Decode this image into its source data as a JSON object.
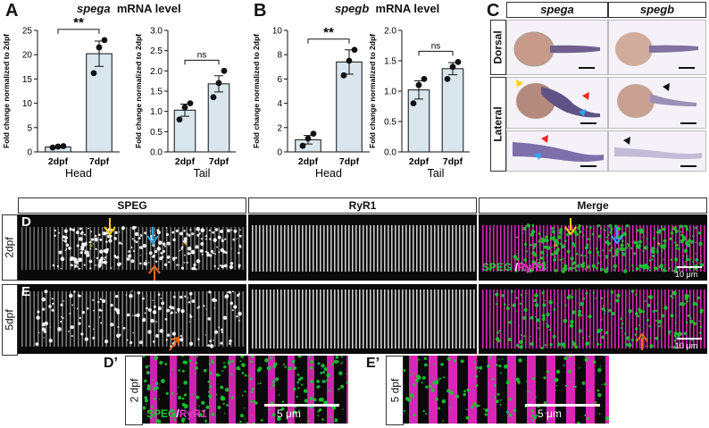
{
  "panels": {
    "A": {
      "label": "A",
      "gene": "spega",
      "title_suffix": "mRNA level"
    },
    "B": {
      "label": "B",
      "gene": "spegb",
      "title_suffix": "mRNA level"
    },
    "C": {
      "label": "C",
      "col1": "spega",
      "col2": "spegb",
      "row1": "Dorsal",
      "row2": "Lateral"
    },
    "D": {
      "label": "D",
      "row": "2dpf"
    },
    "E": {
      "label": "E",
      "row": "5dpf"
    },
    "Dp": {
      "label": "D’",
      "row": "2 dpf",
      "scale": "5 μm",
      "legend_a": "SPEG",
      "legend_sep": "/",
      "legend_b": "RyR1"
    },
    "Ep": {
      "label": "E’",
      "row": "5 dpf",
      "scale": "5 μm"
    }
  },
  "headers": {
    "speg": "SPEG",
    "ryr1": "RyR1",
    "merge": "Merge"
  },
  "merge_legend": {
    "a": "SPEG",
    "sep": " /",
    "b": "RyR1"
  },
  "scale_10": "10 μm",
  "colors": {
    "green": "#18c932",
    "magenta": "#ff2bd6",
    "yellow": "#ffd400",
    "blue": "#29a8ff",
    "red": "#ff2020",
    "orange": "#ff6a1a",
    "bar": "#d9e6ee"
  },
  "chart_data": [
    {
      "id": "A-head",
      "type": "bar",
      "ylabel": "Fold change normalized to 2dpf",
      "categories": [
        "2dpf",
        "7dpf"
      ],
      "values": [
        1.0,
        20.2
      ],
      "error": [
        0.2,
        2.6
      ],
      "points": [
        [
          0.9,
          1.1,
          1.2
        ],
        [
          16.2,
          21.5,
          23.0
        ]
      ],
      "ylim": [
        0,
        25
      ],
      "yticks": [
        0,
        5,
        10,
        15,
        20,
        25
      ],
      "group": "Head",
      "sig": "**"
    },
    {
      "id": "A-tail",
      "type": "bar",
      "ylabel": "Fold change normalized to 2dpf",
      "categories": [
        "2dpf",
        "7dpf"
      ],
      "values": [
        1.03,
        1.68
      ],
      "error": [
        0.15,
        0.2
      ],
      "points": [
        [
          0.8,
          1.1,
          1.2
        ],
        [
          1.35,
          1.7,
          2.0
        ]
      ],
      "ylim": [
        0,
        3
      ],
      "yticks": [
        0.0,
        0.5,
        1.0,
        1.5,
        2.0,
        2.5,
        3.0
      ],
      "group": "Tail",
      "sig": "ns"
    },
    {
      "id": "B-head",
      "type": "bar",
      "ylabel": "Fold change normalized to 2dpf",
      "categories": [
        "2dpf",
        "7dpf"
      ],
      "values": [
        1.0,
        7.4
      ],
      "error": [
        0.35,
        1.0
      ],
      "points": [
        [
          0.5,
          1.1,
          1.5
        ],
        [
          6.3,
          7.5,
          8.4
        ]
      ],
      "ylim": [
        0,
        10
      ],
      "yticks": [
        0,
        2,
        4,
        6,
        8,
        10
      ],
      "group": "Head",
      "sig": "**"
    },
    {
      "id": "B-tail",
      "type": "bar",
      "ylabel": "Fold change normalized to 2dpf",
      "categories": [
        "2dpf",
        "7dpf"
      ],
      "values": [
        1.02,
        1.37
      ],
      "error": [
        0.15,
        0.1
      ],
      "points": [
        [
          0.8,
          1.1,
          1.2
        ],
        [
          1.2,
          1.4,
          1.48
        ]
      ],
      "ylim": [
        0,
        2.0
      ],
      "yticks": [
        0.0,
        0.5,
        1.0,
        1.5,
        2.0
      ],
      "group": "Tail",
      "sig": "ns"
    }
  ]
}
